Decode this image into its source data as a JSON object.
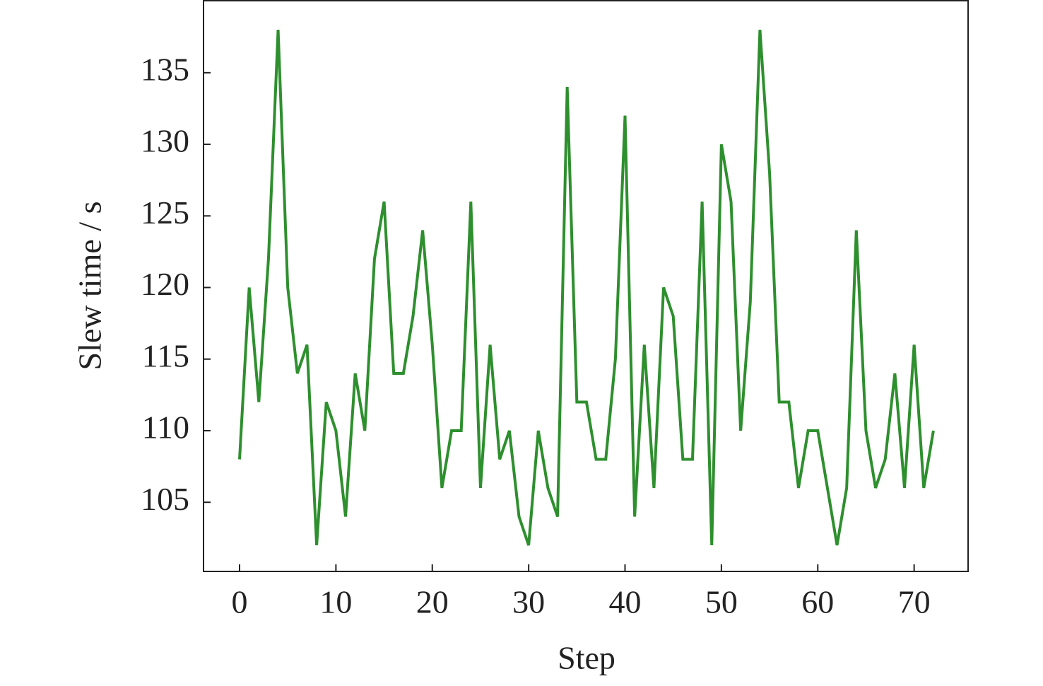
{
  "chart_data": {
    "type": "line",
    "x_label": "Step",
    "y_label": "Slew time / s",
    "x": [
      0,
      1,
      2,
      3,
      4,
      5,
      6,
      7,
      8,
      9,
      10,
      11,
      12,
      13,
      14,
      15,
      16,
      17,
      18,
      19,
      20,
      21,
      22,
      23,
      24,
      25,
      26,
      27,
      28,
      29,
      30,
      31,
      32,
      33,
      34,
      35,
      36,
      37,
      38,
      39,
      40,
      41,
      42,
      43,
      44,
      45,
      46,
      47,
      48,
      49,
      50,
      51,
      52,
      53,
      54,
      55,
      56,
      57,
      58,
      59,
      60,
      61,
      62,
      63,
      64,
      65,
      66,
      67,
      68,
      69,
      70,
      71,
      72
    ],
    "series": [
      {
        "color": "#2e8f2e",
        "values": [
          108,
          120,
          112,
          122,
          138,
          120,
          114,
          116,
          102,
          112,
          110,
          104,
          114,
          110,
          122,
          126,
          114,
          114,
          118,
          124,
          116,
          106,
          110,
          110,
          126,
          106,
          116,
          108,
          110,
          104,
          102,
          110,
          106,
          104,
          134,
          112,
          112,
          108,
          108,
          115,
          132,
          104,
          116,
          106,
          120,
          118,
          108,
          108,
          126,
          102,
          130,
          126,
          110,
          119,
          138,
          128,
          112,
          112,
          106,
          110,
          110,
          106,
          102,
          106,
          124,
          110,
          106,
          108,
          114,
          106,
          116,
          106,
          110
        ]
      }
    ],
    "xlim": [
      -3.74,
      75.6
    ],
    "ylim": [
      100.17,
      140.03
    ],
    "xticks": [
      0,
      10,
      20,
      30,
      40,
      50,
      60,
      70
    ],
    "yticks": [
      105,
      110,
      115,
      120,
      125,
      130,
      135
    ]
  }
}
